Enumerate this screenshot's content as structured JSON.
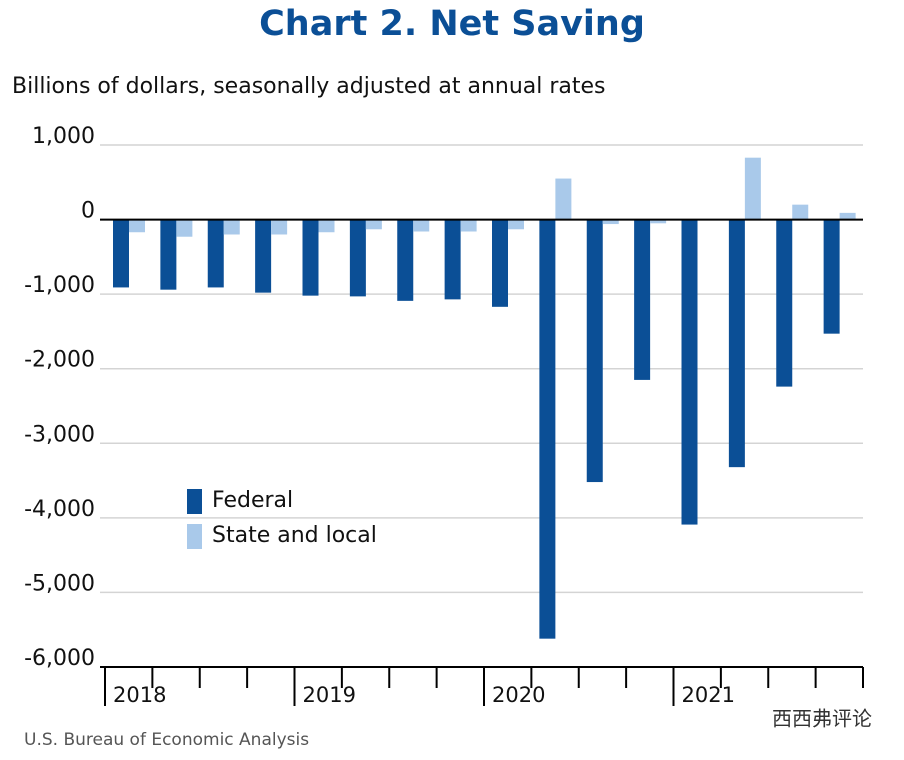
{
  "chart_data": {
    "type": "bar",
    "title": "Chart 2. Net Saving",
    "subtitle": "Billions of dollars, seasonally adjusted at annual rates",
    "source": "U.S. Bureau of Economic Analysis",
    "watermark": "西西弗评论",
    "categories": [
      "2018",
      null,
      null,
      null,
      "2019",
      null,
      null,
      null,
      "2020",
      null,
      null,
      null,
      "2021",
      null,
      null,
      null
    ],
    "series": [
      {
        "name": "Federal",
        "color": "#0b4f96",
        "values": [
          -910,
          -940,
          -910,
          -980,
          -1020,
          -1030,
          -1090,
          -1070,
          -1170,
          -5620,
          -3520,
          -2150,
          -4090,
          -3320,
          -2240,
          -1530
        ]
      },
      {
        "name": "State and local",
        "color": "#a9c9ea",
        "values": [
          -170,
          -230,
          -200,
          -200,
          -170,
          -130,
          -160,
          -160,
          -130,
          550,
          -60,
          -50,
          -10,
          830,
          200,
          90
        ]
      }
    ],
    "ylim": [
      -6000,
      1000
    ],
    "yticks": [
      {
        "value": 1000,
        "label": "1,000"
      },
      0,
      {
        "value": -1000,
        "label": "-1,000"
      },
      {
        "value": -2000,
        "label": "-2,000"
      },
      {
        "value": -3000,
        "label": "-3,000"
      },
      {
        "value": -4000,
        "label": "-4,000"
      },
      {
        "value": -5000,
        "label": "-5,000"
      },
      {
        "value": -6000,
        "label": "-6,000"
      }
    ],
    "grid": true,
    "legend": "lower-left"
  }
}
